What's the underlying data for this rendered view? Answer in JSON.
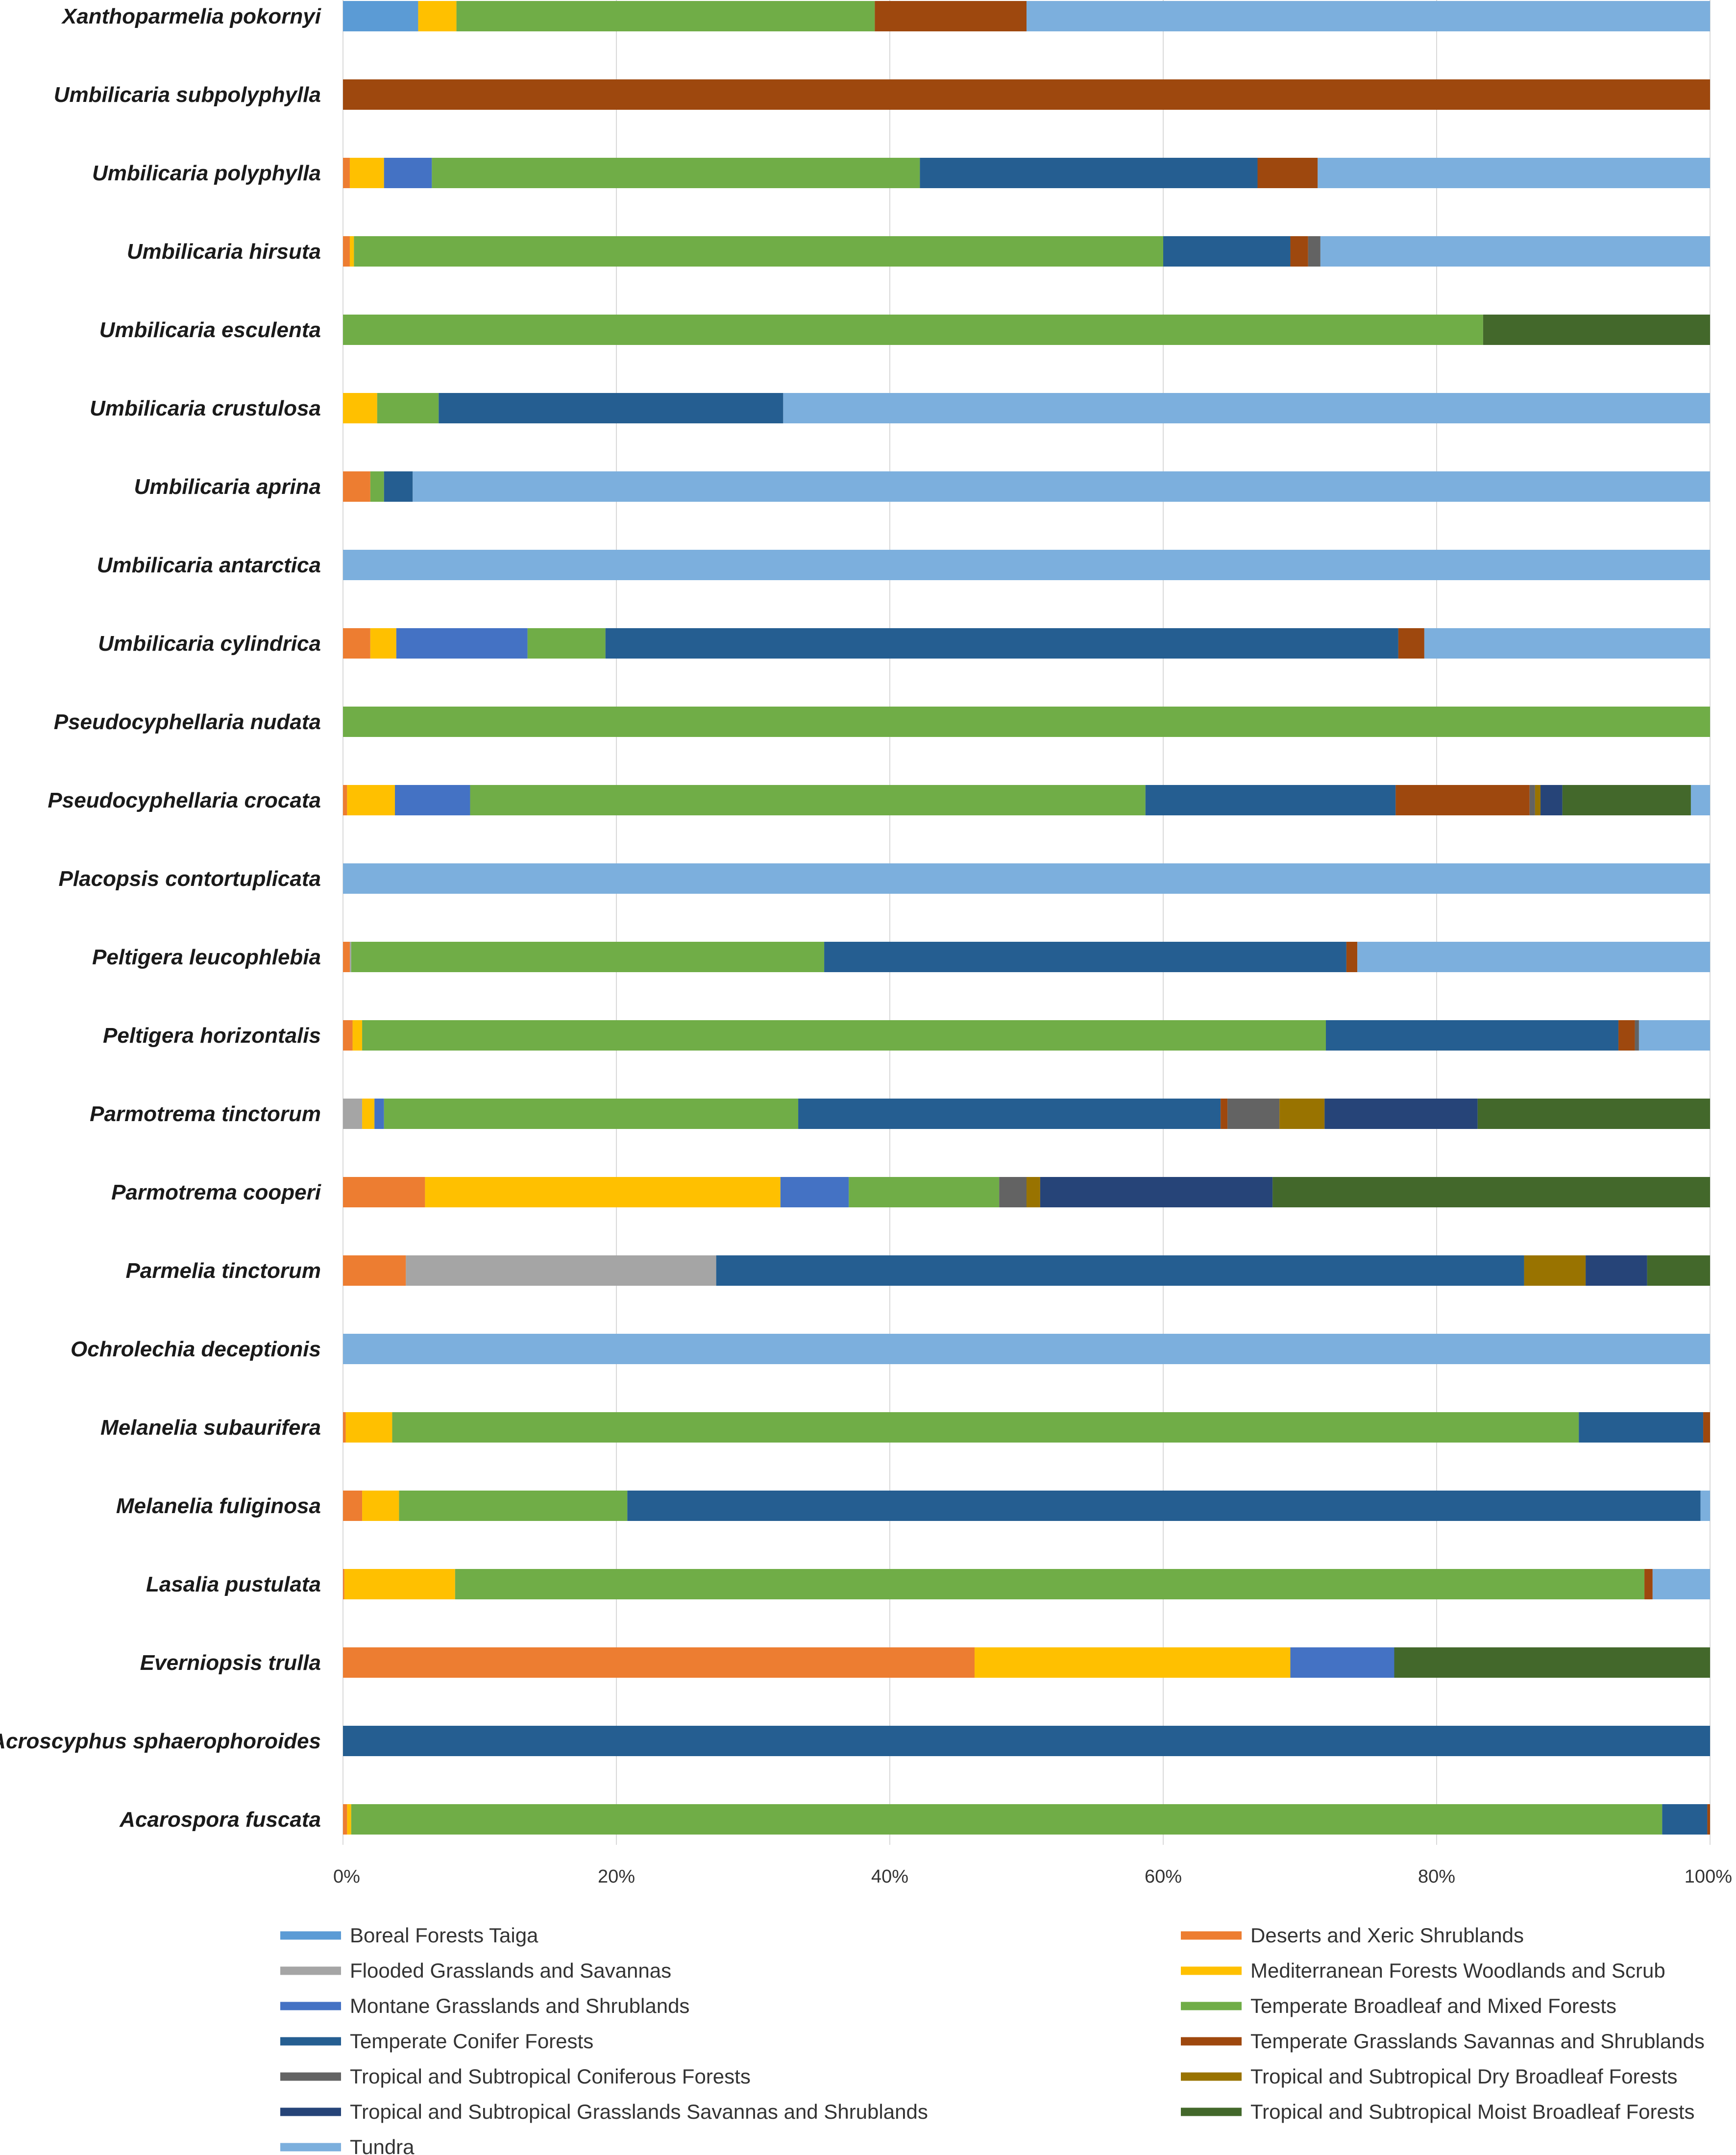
{
  "chart_data": {
    "type": "bar",
    "orientation": "horizontal",
    "stacked": "percent",
    "title": "",
    "xlabel": "",
    "ylabel": "",
    "xlim": [
      0,
      100
    ],
    "x_ticks": [
      "0%",
      "20%",
      "40%",
      "60%",
      "80%",
      "100%"
    ],
    "grid": true,
    "legend_position": "bottom",
    "categories": [
      "Xanthoparmelia pokornyi",
      "Umbilicaria subpolyphylla",
      "Umbilicaria polyphylla",
      "Umbilicaria hirsuta",
      "Umbilicaria esculenta",
      "Umbilicaria crustulosa",
      "Umbilicaria aprina",
      "Umbilicaria antarctica",
      "Umbilicaria  cylindrica",
      "Pseudocyphellaria nudata",
      "Pseudocyphellaria crocata",
      "Placopsis contortuplicata",
      "Peltigera leucophlebia",
      "Peltigera horizontalis",
      "Parmotrema tinctorum",
      "Parmotrema cooperi",
      "Parmelia tinctorum",
      "Ochrolechia deceptionis",
      "Melanelia subaurifera",
      "Melanelia fuliginosa",
      "Lasalia pustulata",
      "Everniopsis trulla",
      "Acroscyphus sphaerophoroides",
      "Acarospora fuscata"
    ],
    "series": [
      {
        "name": "Boreal Forests Taiga",
        "color": "#5b9bd5",
        "values": [
          5.5,
          0,
          0,
          0,
          0,
          0,
          0,
          0,
          0,
          0,
          0,
          0,
          0,
          0,
          0,
          0,
          0,
          0,
          0,
          0,
          0,
          0,
          0,
          0
        ]
      },
      {
        "name": "Deserts and Xeric Shrublands",
        "color": "#ed7d31",
        "values": [
          0,
          0,
          0.5,
          0.5,
          0,
          0,
          2.0,
          0,
          2.0,
          0,
          0.3,
          0,
          0.5,
          0.7,
          0,
          6.0,
          4.6,
          0,
          0.2,
          1.4,
          0.1,
          46.2,
          0,
          0.3
        ]
      },
      {
        "name": "Flooded Grasslands and Savannas",
        "color": "#a5a5a5",
        "values": [
          0,
          0,
          0,
          0,
          0,
          0,
          0,
          0,
          0,
          0,
          0,
          0,
          0.1,
          0,
          1.4,
          0,
          22.7,
          0,
          0,
          0,
          0,
          0,
          0,
          0
        ]
      },
      {
        "name": "Mediterranean Forests Woodlands and Scrub",
        "color": "#ffc000",
        "values": [
          2.8,
          0,
          2.5,
          0.3,
          0,
          2.5,
          0,
          0,
          1.9,
          0,
          3.5,
          0,
          0,
          0.7,
          0.9,
          26.0,
          0,
          0,
          3.4,
          2.7,
          8.1,
          23.1,
          0,
          0.3
        ]
      },
      {
        "name": "Montane Grasslands and Shrublands",
        "color": "#4472c4",
        "values": [
          0,
          0,
          3.5,
          0,
          0,
          0,
          0,
          0,
          9.6,
          0,
          5.5,
          0,
          0,
          0,
          0.7,
          5.0,
          0,
          0,
          0,
          0,
          0,
          7.6,
          0,
          0
        ]
      },
      {
        "name": "Temperate Broadleaf and Mixed Forests",
        "color": "#70ad47",
        "values": [
          30.6,
          0,
          35.7,
          59.2,
          83.4,
          4.5,
          1.0,
          0,
          5.7,
          100,
          49.4,
          0,
          34.6,
          70.5,
          30.3,
          11.0,
          0,
          0,
          86.8,
          16.7,
          87.0,
          0,
          0,
          95.9
        ]
      },
      {
        "name": "Temperate Conifer Forests",
        "color": "#255e91",
        "values": [
          0,
          0,
          24.7,
          9.3,
          0,
          25.2,
          2.1,
          0,
          58.0,
          0,
          18.3,
          0,
          38.2,
          21.4,
          30.9,
          0,
          59.1,
          0,
          9.1,
          78.5,
          0,
          0,
          100,
          3.3
        ]
      },
      {
        "name": "Temperate Grasslands Savannas and Shrublands",
        "color": "#9e480e",
        "values": [
          11.1,
          100,
          4.4,
          1.3,
          0,
          0,
          0,
          0,
          1.9,
          0,
          9.8,
          0,
          0.8,
          1.2,
          0.5,
          0,
          0,
          0,
          0.5,
          0,
          0.6,
          0,
          0,
          0.2
        ]
      },
      {
        "name": "Tropical and Subtropical Coniferous Forests",
        "color": "#636363",
        "values": [
          0,
          0,
          0,
          0.9,
          0,
          0,
          0,
          0,
          0,
          0,
          0.4,
          0,
          0,
          0.3,
          3.8,
          2.0,
          0,
          0,
          0,
          0,
          0,
          0,
          0,
          0
        ]
      },
      {
        "name": "Tropical and Subtropical Dry Broadleaf Forests",
        "color": "#997300",
        "values": [
          0,
          0,
          0,
          0,
          0,
          0,
          0,
          0,
          0,
          0,
          0.4,
          0,
          0,
          0,
          3.3,
          1.0,
          4.5,
          0,
          0,
          0,
          0,
          0,
          0,
          0
        ]
      },
      {
        "name": "Tropical and Subtropical Grasslands Savannas and Shrublands",
        "color": "#264478",
        "values": [
          0,
          0,
          0,
          0,
          0,
          0,
          0,
          0,
          0,
          0,
          1.6,
          0,
          0,
          0,
          11.2,
          17.0,
          4.5,
          0,
          0,
          0,
          0,
          0,
          0,
          0
        ]
      },
      {
        "name": "Tropical and Subtropical Moist Broadleaf Forests",
        "color": "#43682b",
        "values": [
          0,
          0,
          0,
          0,
          16.6,
          0,
          0,
          0,
          0,
          0,
          9.4,
          0,
          0,
          0,
          17.0,
          32.0,
          4.6,
          0,
          0,
          0,
          0,
          23.1,
          0,
          0
        ]
      },
      {
        "name": "Tundra",
        "color": "#7cafdd",
        "values": [
          50.0,
          0,
          28.7,
          28.5,
          0,
          67.8,
          94.9,
          100,
          20.9,
          0,
          1.4,
          100,
          25.8,
          5.2,
          0,
          0,
          0,
          100,
          0,
          0.7,
          4.2,
          0,
          0,
          0
        ]
      }
    ]
  }
}
